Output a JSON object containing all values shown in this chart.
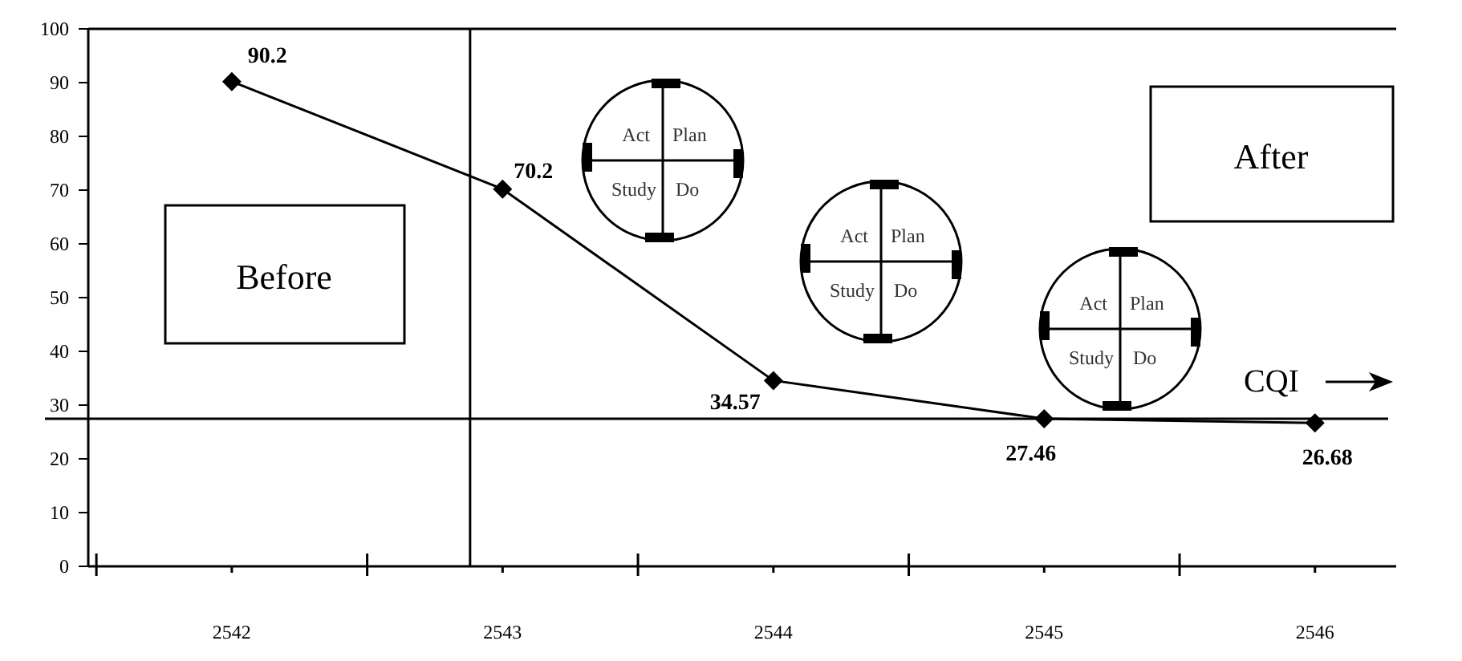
{
  "chart_data": {
    "type": "line",
    "x": [
      2542,
      2543,
      2544,
      2545,
      2546
    ],
    "values": [
      90.2,
      70.2,
      34.57,
      27.46,
      26.68
    ],
    "value_labels": [
      "90.2",
      "70.2",
      "34.57",
      "27.46",
      "26.68"
    ],
    "color": "#000000",
    "marker": "diamond",
    "line_style": "solid",
    "xlim": [
      2541.47,
      2546.3
    ],
    "xticks": [
      {
        "value": 2541.5,
        "label": null
      },
      2542,
      {
        "value": 2542.5,
        "label": null
      },
      2543,
      {
        "value": 2543.5,
        "label": null
      },
      2544,
      {
        "value": 2544.5,
        "label": null
      },
      2545,
      {
        "value": 2545.5,
        "label": null
      },
      2546
    ],
    "ylim": [
      0,
      100
    ],
    "yticks": [
      0,
      10,
      20,
      30,
      40,
      50,
      60,
      70,
      80,
      90,
      100
    ],
    "grid": false,
    "ref_lines": [
      {
        "axis": "y",
        "value": 27.46,
        "label": null
      },
      {
        "axis": "x",
        "value": 2542.88,
        "label": null
      }
    ],
    "annotations": [
      "Before",
      "After",
      "CQI",
      "Act",
      "Plan",
      "Study",
      "Do",
      "Act",
      "Plan",
      "Study",
      "Do",
      "Act",
      "Plan",
      "Study",
      "Do"
    ]
  }
}
